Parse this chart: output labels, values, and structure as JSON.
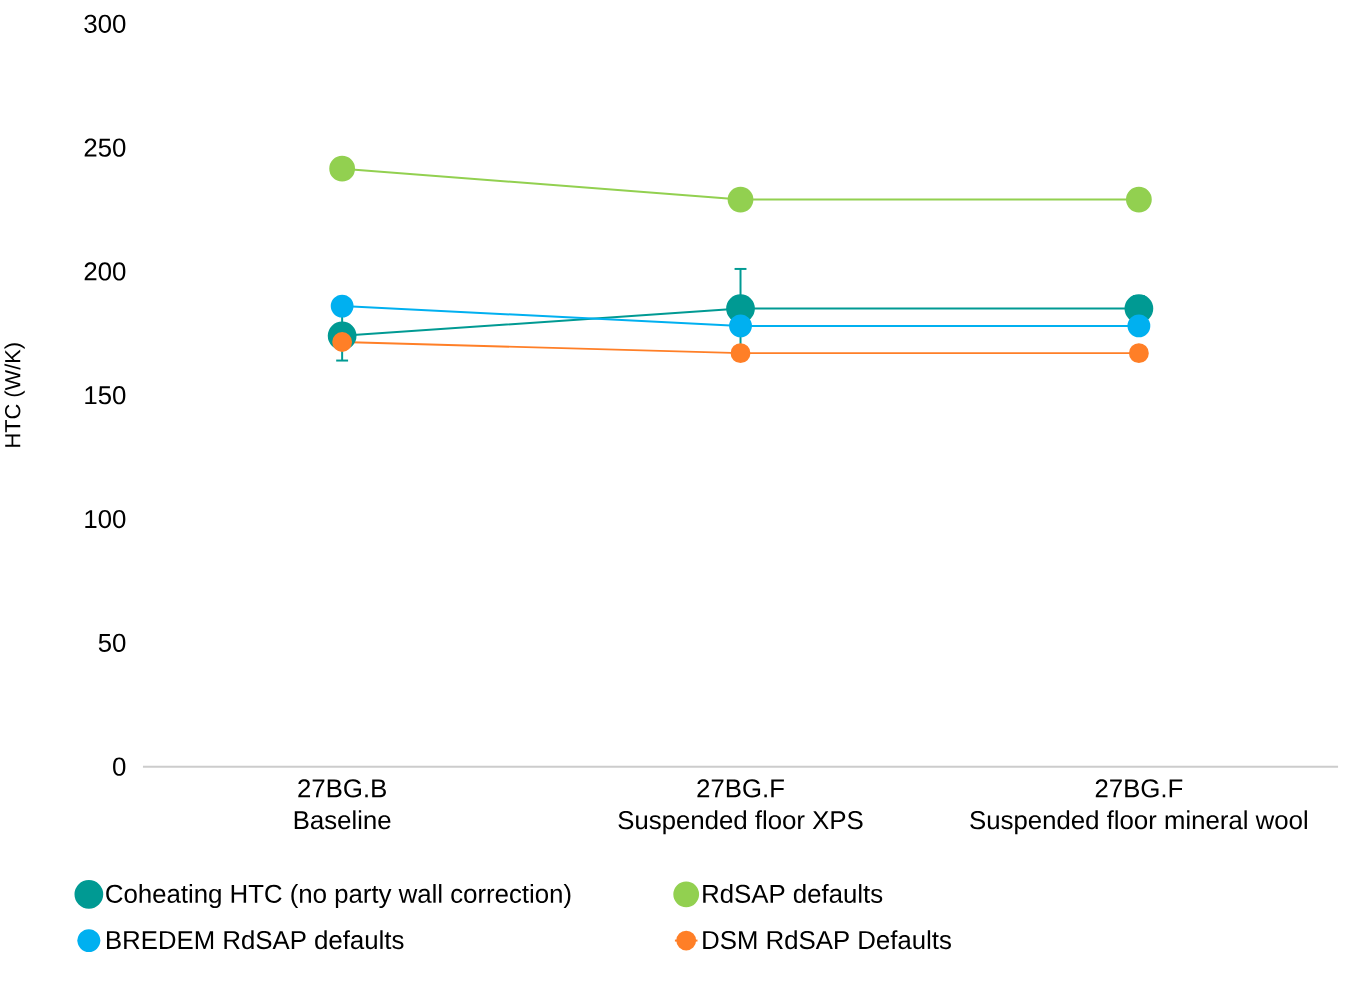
{
  "chart_data": {
    "type": "line",
    "ylabel": "HTC (W/K)",
    "categories": [
      "27BG.B\nBaseline",
      "27BG.F\nSuspended floor XPS",
      "27BG.F\nSuspended floor mineral wool"
    ],
    "series": [
      {
        "name": "Coheating HTC (no party wall correction)",
        "color": "#009a93",
        "values": [
          174,
          185,
          185
        ],
        "errors": [
          10,
          16,
          5
        ]
      },
      {
        "name": "RdSAP defaults",
        "color": "#92d050",
        "values": [
          241.5,
          229,
          229
        ]
      },
      {
        "name": "BREDEM RdSAP defaults",
        "color": "#00b0f0",
        "values": [
          186,
          178,
          178
        ]
      },
      {
        "name": "DSM RdSAP Defaults",
        "color": "#ff7f27",
        "values": [
          171.5,
          167,
          167
        ]
      }
    ],
    "ylim": [
      0,
      300
    ],
    "yticks": [
      0,
      50,
      100,
      150,
      200,
      250,
      300
    ],
    "grid": false,
    "legend": "bottom",
    "marker": "circle",
    "line_style": "solid"
  }
}
